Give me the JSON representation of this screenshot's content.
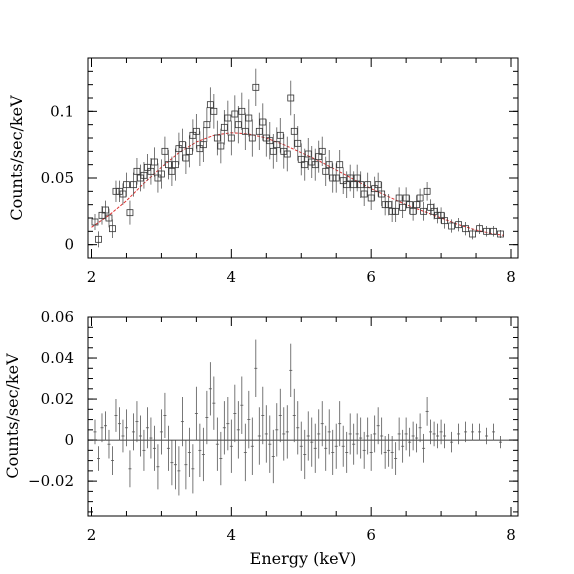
{
  "chart_data": [
    {
      "type": "scatter",
      "title": "",
      "xlabel": "",
      "ylabel": "Counts/sec/keV",
      "xlim": [
        1.95,
        8.1
      ],
      "ylim": [
        -0.01,
        0.14
      ],
      "xticks": [
        "2",
        "4",
        "6",
        "8"
      ],
      "yticks": [
        "0",
        "0.05",
        "0.1"
      ],
      "grid": false,
      "series": [
        {
          "x": [
            2.05,
            2.1,
            2.15,
            2.2,
            2.25,
            2.3,
            2.35,
            2.4,
            2.45,
            2.5,
            2.55,
            2.6,
            2.65,
            2.7,
            2.75,
            2.8,
            2.85,
            2.9,
            2.95,
            3.0,
            3.05,
            3.1,
            3.15,
            3.2,
            3.25,
            3.3,
            3.35,
            3.4,
            3.45,
            3.5,
            3.55,
            3.6,
            3.65,
            3.7,
            3.75,
            3.8,
            3.85,
            3.9,
            3.95,
            4.0,
            4.05,
            4.1,
            4.15,
            4.2,
            4.25,
            4.3,
            4.35,
            4.4,
            4.45,
            4.5,
            4.55,
            4.6,
            4.65,
            4.7,
            4.75,
            4.8,
            4.85,
            4.9,
            4.95,
            5.0,
            5.05,
            5.1,
            5.15,
            5.2,
            5.25,
            5.3,
            5.35,
            5.4,
            5.45,
            5.5,
            5.55,
            5.6,
            5.65,
            5.7,
            5.75,
            5.8,
            5.85,
            5.9,
            5.95,
            6.0,
            6.05,
            6.1,
            6.15,
            6.2,
            6.25,
            6.3,
            6.35,
            6.4,
            6.45,
            6.5,
            6.55,
            6.6,
            6.65,
            6.7,
            6.75,
            6.8,
            6.85,
            6.9,
            6.95,
            7.0,
            7.05,
            7.15,
            7.25,
            7.35,
            7.45,
            7.55,
            7.65,
            7.75,
            7.85
          ],
          "y": [
            0.017,
            0.004,
            0.022,
            0.026,
            0.02,
            0.012,
            0.04,
            0.04,
            0.038,
            0.045,
            0.024,
            0.045,
            0.055,
            0.05,
            0.052,
            0.058,
            0.055,
            0.062,
            0.05,
            0.053,
            0.07,
            0.06,
            0.055,
            0.06,
            0.072,
            0.075,
            0.065,
            0.07,
            0.082,
            0.085,
            0.072,
            0.075,
            0.09,
            0.105,
            0.1,
            0.08,
            0.074,
            0.088,
            0.095,
            0.08,
            0.098,
            0.09,
            0.1,
            0.085,
            0.095,
            0.08,
            0.118,
            0.085,
            0.092,
            0.08,
            0.078,
            0.07,
            0.075,
            0.082,
            0.07,
            0.068,
            0.11,
            0.085,
            0.076,
            0.064,
            0.06,
            0.068,
            0.062,
            0.06,
            0.066,
            0.07,
            0.055,
            0.06,
            0.05,
            0.05,
            0.06,
            0.048,
            0.045,
            0.05,
            0.045,
            0.05,
            0.045,
            0.038,
            0.045,
            0.035,
            0.042,
            0.045,
            0.038,
            0.03,
            0.03,
            0.025,
            0.025,
            0.035,
            0.028,
            0.035,
            0.03,
            0.025,
            0.03,
            0.035,
            0.025,
            0.04,
            0.028,
            0.025,
            0.022,
            0.022,
            0.018,
            0.014,
            0.015,
            0.012,
            0.008,
            0.012,
            0.01,
            0.01,
            0.008
          ],
          "err": [
            0.006,
            0.006,
            0.007,
            0.007,
            0.007,
            0.007,
            0.008,
            0.008,
            0.008,
            0.009,
            0.009,
            0.009,
            0.01,
            0.01,
            0.01,
            0.01,
            0.01,
            0.011,
            0.011,
            0.011,
            0.011,
            0.011,
            0.011,
            0.012,
            0.012,
            0.012,
            0.012,
            0.012,
            0.012,
            0.013,
            0.013,
            0.013,
            0.013,
            0.013,
            0.013,
            0.013,
            0.013,
            0.013,
            0.013,
            0.013,
            0.014,
            0.014,
            0.014,
            0.014,
            0.014,
            0.014,
            0.014,
            0.014,
            0.014,
            0.014,
            0.014,
            0.013,
            0.013,
            0.013,
            0.013,
            0.013,
            0.013,
            0.013,
            0.013,
            0.012,
            0.012,
            0.012,
            0.012,
            0.012,
            0.012,
            0.011,
            0.011,
            0.011,
            0.011,
            0.011,
            0.011,
            0.01,
            0.01,
            0.01,
            0.01,
            0.01,
            0.01,
            0.009,
            0.009,
            0.009,
            0.009,
            0.009,
            0.009,
            0.008,
            0.008,
            0.008,
            0.008,
            0.008,
            0.008,
            0.008,
            0.007,
            0.007,
            0.007,
            0.007,
            0.007,
            0.007,
            0.006,
            0.006,
            0.006,
            0.006,
            0.006,
            0.005,
            0.005,
            0.005,
            0.004,
            0.004,
            0.004,
            0.004,
            0.003
          ]
        }
      ],
      "model_curve": {
        "color": "#e03030",
        "x": [
          2.0,
          2.25,
          2.5,
          2.75,
          3.0,
          3.25,
          3.5,
          3.75,
          4.0,
          4.25,
          4.5,
          4.75,
          5.0,
          5.25,
          5.5,
          5.75,
          6.0,
          6.25,
          6.5,
          6.75,
          7.0,
          7.25,
          7.5,
          7.75,
          7.9
        ],
        "y": [
          0.013,
          0.022,
          0.033,
          0.046,
          0.058,
          0.069,
          0.077,
          0.082,
          0.084,
          0.083,
          0.08,
          0.075,
          0.069,
          0.063,
          0.056,
          0.049,
          0.042,
          0.036,
          0.03,
          0.025,
          0.02,
          0.015,
          0.011,
          0.008,
          0.007
        ]
      }
    },
    {
      "type": "scatter",
      "title": "",
      "xlabel": "Energy (keV)",
      "ylabel": "Counts/sec/keV",
      "xlim": [
        1.95,
        8.1
      ],
      "ylim": [
        -0.037,
        0.06
      ],
      "xticks": [
        "2",
        "4",
        "6",
        "8"
      ],
      "yticks": [
        "−0.02",
        "0",
        "0.02",
        "0.04",
        "0.06"
      ],
      "grid": false,
      "zero_line": true,
      "series": [
        {
          "x": [
            2.05,
            2.1,
            2.15,
            2.2,
            2.25,
            2.3,
            2.35,
            2.4,
            2.45,
            2.5,
            2.55,
            2.6,
            2.65,
            2.7,
            2.75,
            2.8,
            2.85,
            2.9,
            2.95,
            3.0,
            3.05,
            3.1,
            3.15,
            3.2,
            3.25,
            3.3,
            3.35,
            3.4,
            3.45,
            3.5,
            3.55,
            3.6,
            3.65,
            3.7,
            3.75,
            3.8,
            3.85,
            3.9,
            3.95,
            4.0,
            4.05,
            4.1,
            4.15,
            4.2,
            4.25,
            4.3,
            4.35,
            4.4,
            4.45,
            4.5,
            4.55,
            4.6,
            4.65,
            4.7,
            4.75,
            4.8,
            4.85,
            4.9,
            4.95,
            5.0,
            5.05,
            5.1,
            5.15,
            5.2,
            5.25,
            5.3,
            5.35,
            5.4,
            5.45,
            5.5,
            5.55,
            5.6,
            5.65,
            5.7,
            5.75,
            5.8,
            5.85,
            5.9,
            5.95,
            6.0,
            6.05,
            6.1,
            6.15,
            6.2,
            6.25,
            6.3,
            6.35,
            6.4,
            6.45,
            6.5,
            6.55,
            6.6,
            6.65,
            6.7,
            6.75,
            6.8,
            6.85,
            6.9,
            6.95,
            7.0,
            7.05,
            7.15,
            7.25,
            7.35,
            7.45,
            7.55,
            7.65,
            7.75,
            7.85
          ],
          "y": [
            0.004,
            -0.009,
            0.006,
            0.007,
            -0.002,
            -0.01,
            0.012,
            0.008,
            0.002,
            0.006,
            -0.014,
            0.004,
            0.009,
            0.002,
            -0.005,
            0.006,
            0.001,
            -0.004,
            -0.013,
            0.004,
            0.012,
            -0.004,
            -0.011,
            -0.012,
            -0.015,
            0.009,
            -0.012,
            -0.006,
            -0.014,
            0.013,
            -0.005,
            -0.007,
            0.011,
            0.025,
            0.018,
            -0.002,
            -0.009,
            0.006,
            0.008,
            -0.003,
            0.013,
            0.005,
            0.017,
            -0.006,
            0.01,
            -0.003,
            0.035,
            0.002,
            0.012,
            0.003,
            -0.002,
            -0.008,
            0.005,
            0.012,
            0.003,
            0.004,
            0.034,
            0.012,
            0.006,
            -0.003,
            -0.007,
            0.002,
            -0.001,
            -0.004,
            0.003,
            0.008,
            -0.004,
            0.004,
            -0.006,
            -0.003,
            0.008,
            -0.003,
            -0.006,
            0.003,
            -0.002,
            0.003,
            0.001,
            -0.005,
            0.002,
            -0.006,
            0.003,
            0.007,
            0.002,
            -0.006,
            -0.005,
            -0.006,
            -0.009,
            0.003,
            -0.003,
            0.003,
            -0.001,
            0.002,
            0.001,
            0.006,
            -0.004,
            0.014,
            0.004,
            0.003,
            0.002,
            0.004,
            0.002,
            -0.001,
            0.003,
            0.004,
            0.004,
            0.004,
            0.002,
            0.004,
            -0.001
          ],
          "err": [
            0.006,
            0.006,
            0.007,
            0.007,
            0.007,
            0.007,
            0.008,
            0.008,
            0.008,
            0.009,
            0.009,
            0.009,
            0.01,
            0.01,
            0.01,
            0.01,
            0.01,
            0.011,
            0.011,
            0.011,
            0.011,
            0.011,
            0.011,
            0.012,
            0.012,
            0.012,
            0.012,
            0.012,
            0.012,
            0.013,
            0.013,
            0.013,
            0.013,
            0.013,
            0.013,
            0.013,
            0.013,
            0.013,
            0.013,
            0.013,
            0.014,
            0.014,
            0.014,
            0.014,
            0.014,
            0.014,
            0.014,
            0.014,
            0.014,
            0.014,
            0.014,
            0.013,
            0.013,
            0.013,
            0.013,
            0.013,
            0.013,
            0.013,
            0.013,
            0.012,
            0.012,
            0.012,
            0.012,
            0.012,
            0.012,
            0.011,
            0.011,
            0.011,
            0.011,
            0.011,
            0.011,
            0.01,
            0.01,
            0.01,
            0.01,
            0.01,
            0.01,
            0.009,
            0.009,
            0.009,
            0.009,
            0.009,
            0.009,
            0.008,
            0.008,
            0.008,
            0.008,
            0.008,
            0.008,
            0.008,
            0.007,
            0.007,
            0.007,
            0.007,
            0.007,
            0.007,
            0.006,
            0.006,
            0.006,
            0.006,
            0.006,
            0.005,
            0.005,
            0.005,
            0.004,
            0.004,
            0.004,
            0.004,
            0.003
          ]
        }
      ]
    }
  ]
}
